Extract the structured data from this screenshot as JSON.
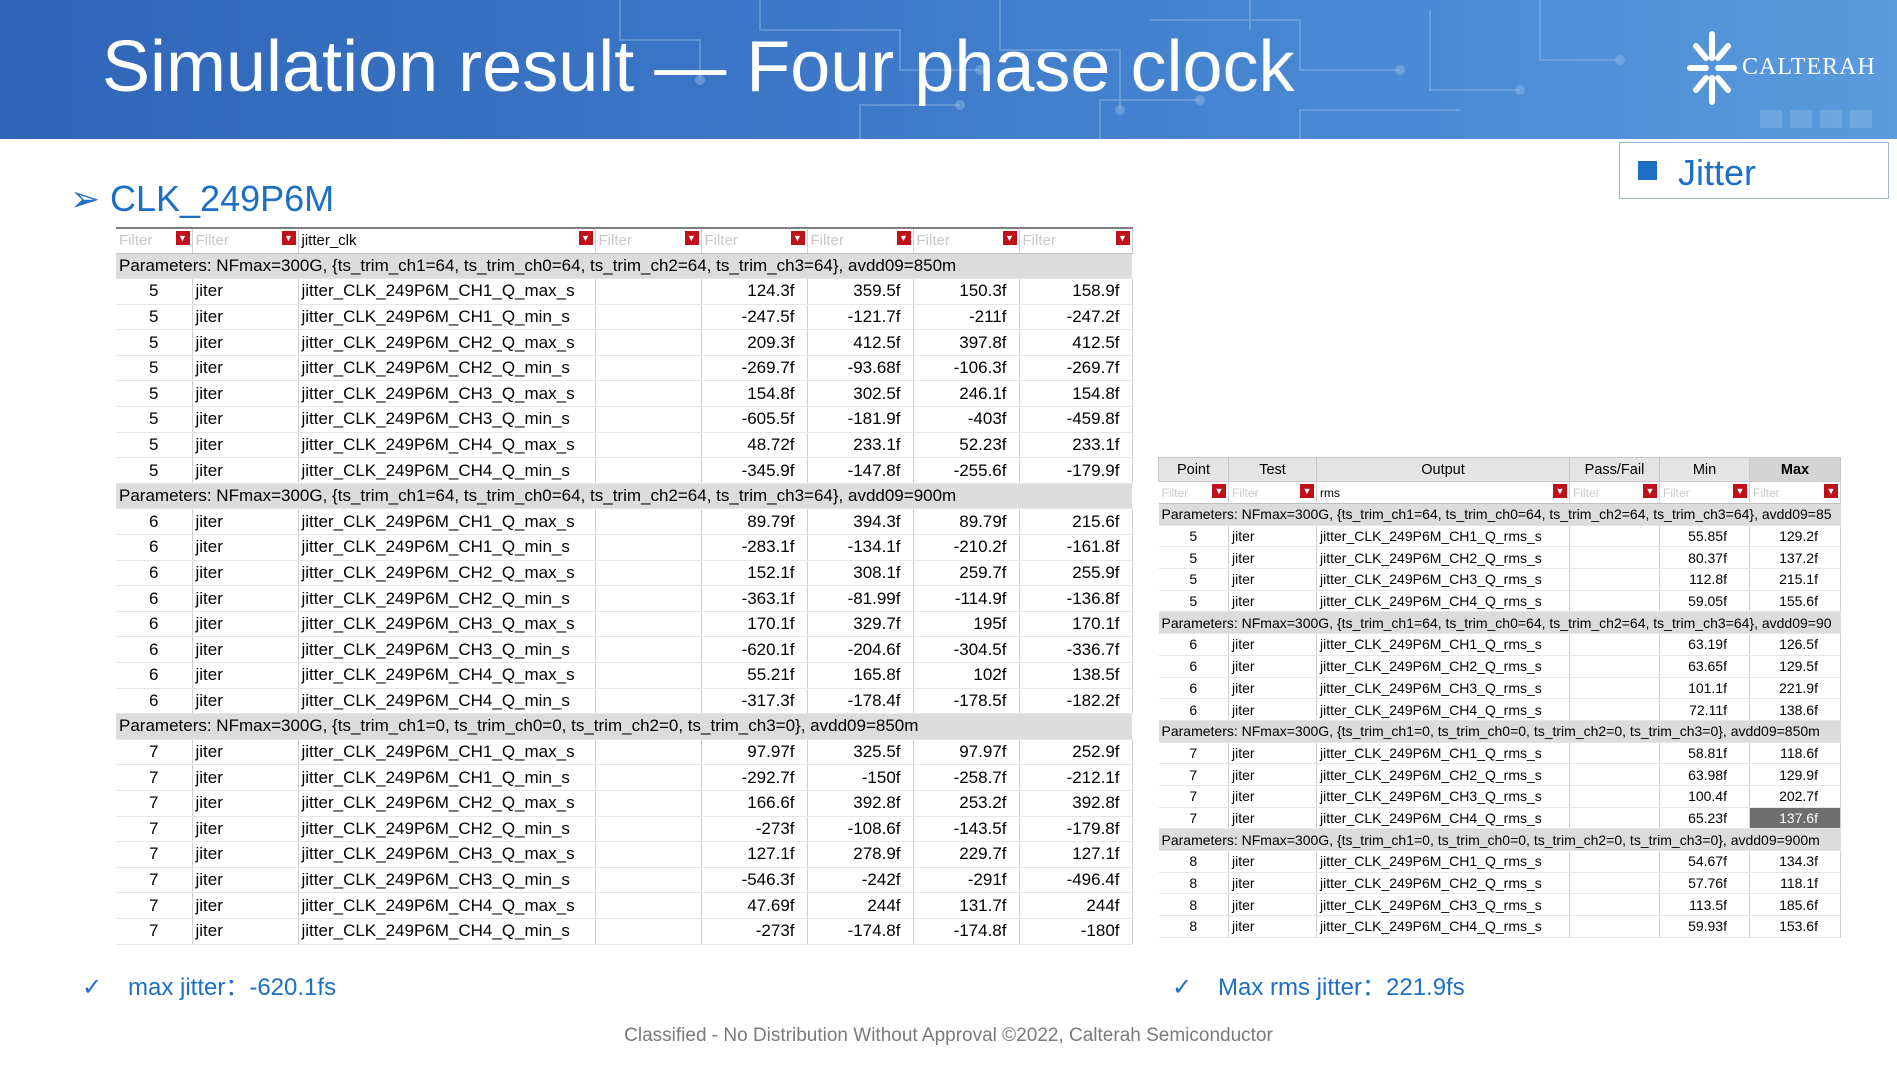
{
  "slide": {
    "title": "Simulation result — Four phase clock",
    "logo_text": "CALTERAH",
    "legend_label": "Jitter",
    "section_heading": "CLK_249P6M",
    "note_left": "max jitter：-620.1fs",
    "note_right": "Max rms jitter：221.9fs",
    "footer": "Classified - No Distribution Without Approval  ©2022, Calterah Semiconductor",
    "colors": {
      "accent": "#1d6fc4",
      "banner": "#3d79c8",
      "filter_icon": "#c0101a"
    }
  },
  "icons": {
    "section_bullet": "➢",
    "check": "✓",
    "filter": "▼"
  },
  "left_table": {
    "filter_placeholder": "Filter",
    "output_filter_value": "jitter_clk",
    "groups": [
      {
        "params": "Parameters: NFmax=300G, {ts_trim_ch1=64, ts_trim_ch0=64, ts_trim_ch2=64, ts_trim_ch3=64}, avdd09=850m",
        "rows": [
          [
            "5",
            "jiter",
            "jitter_CLK_249P6M_CH1_Q_max_s",
            "",
            "124.3f",
            "359.5f",
            "150.3f",
            "158.9f"
          ],
          [
            "5",
            "jiter",
            "jitter_CLK_249P6M_CH1_Q_min_s",
            "",
            "-247.5f",
            "-121.7f",
            "-211f",
            "-247.2f"
          ],
          [
            "5",
            "jiter",
            "jitter_CLK_249P6M_CH2_Q_max_s",
            "",
            "209.3f",
            "412.5f",
            "397.8f",
            "412.5f"
          ],
          [
            "5",
            "jiter",
            "jitter_CLK_249P6M_CH2_Q_min_s",
            "",
            "-269.7f",
            "-93.68f",
            "-106.3f",
            "-269.7f"
          ],
          [
            "5",
            "jiter",
            "jitter_CLK_249P6M_CH3_Q_max_s",
            "",
            "154.8f",
            "302.5f",
            "246.1f",
            "154.8f"
          ],
          [
            "5",
            "jiter",
            "jitter_CLK_249P6M_CH3_Q_min_s",
            "",
            "-605.5f",
            "-181.9f",
            "-403f",
            "-459.8f"
          ],
          [
            "5",
            "jiter",
            "jitter_CLK_249P6M_CH4_Q_max_s",
            "",
            "48.72f",
            "233.1f",
            "52.23f",
            "233.1f"
          ],
          [
            "5",
            "jiter",
            "jitter_CLK_249P6M_CH4_Q_min_s",
            "",
            "-345.9f",
            "-147.8f",
            "-255.6f",
            "-179.9f"
          ]
        ]
      },
      {
        "params": "Parameters: NFmax=300G, {ts_trim_ch1=64, ts_trim_ch0=64, ts_trim_ch2=64, ts_trim_ch3=64}, avdd09=900m",
        "rows": [
          [
            "6",
            "jiter",
            "jitter_CLK_249P6M_CH1_Q_max_s",
            "",
            "89.79f",
            "394.3f",
            "89.79f",
            "215.6f"
          ],
          [
            "6",
            "jiter",
            "jitter_CLK_249P6M_CH1_Q_min_s",
            "",
            "-283.1f",
            "-134.1f",
            "-210.2f",
            "-161.8f"
          ],
          [
            "6",
            "jiter",
            "jitter_CLK_249P6M_CH2_Q_max_s",
            "",
            "152.1f",
            "308.1f",
            "259.7f",
            "255.9f"
          ],
          [
            "6",
            "jiter",
            "jitter_CLK_249P6M_CH2_Q_min_s",
            "",
            "-363.1f",
            "-81.99f",
            "-114.9f",
            "-136.8f"
          ],
          [
            "6",
            "jiter",
            "jitter_CLK_249P6M_CH3_Q_max_s",
            "",
            "170.1f",
            "329.7f",
            "195f",
            "170.1f"
          ],
          [
            "6",
            "jiter",
            "jitter_CLK_249P6M_CH3_Q_min_s",
            "",
            "-620.1f",
            "-204.6f",
            "-304.5f",
            "-336.7f"
          ],
          [
            "6",
            "jiter",
            "jitter_CLK_249P6M_CH4_Q_max_s",
            "",
            "55.21f",
            "165.8f",
            "102f",
            "138.5f"
          ],
          [
            "6",
            "jiter",
            "jitter_CLK_249P6M_CH4_Q_min_s",
            "",
            "-317.3f",
            "-178.4f",
            "-178.5f",
            "-182.2f"
          ]
        ]
      },
      {
        "params": "Parameters: NFmax=300G, {ts_trim_ch1=0, ts_trim_ch0=0, ts_trim_ch2=0, ts_trim_ch3=0}, avdd09=850m",
        "rows": [
          [
            "7",
            "jiter",
            "jitter_CLK_249P6M_CH1_Q_max_s",
            "",
            "97.97f",
            "325.5f",
            "97.97f",
            "252.9f"
          ],
          [
            "7",
            "jiter",
            "jitter_CLK_249P6M_CH1_Q_min_s",
            "",
            "-292.7f",
            "-150f",
            "-258.7f",
            "-212.1f"
          ],
          [
            "7",
            "jiter",
            "jitter_CLK_249P6M_CH2_Q_max_s",
            "",
            "166.6f",
            "392.8f",
            "253.2f",
            "392.8f"
          ],
          [
            "7",
            "jiter",
            "jitter_CLK_249P6M_CH2_Q_min_s",
            "",
            "-273f",
            "-108.6f",
            "-143.5f",
            "-179.8f"
          ],
          [
            "7",
            "jiter",
            "jitter_CLK_249P6M_CH3_Q_max_s",
            "",
            "127.1f",
            "278.9f",
            "229.7f",
            "127.1f"
          ],
          [
            "7",
            "jiter",
            "jitter_CLK_249P6M_CH3_Q_min_s",
            "",
            "-546.3f",
            "-242f",
            "-291f",
            "-496.4f"
          ],
          [
            "7",
            "jiter",
            "jitter_CLK_249P6M_CH4_Q_max_s",
            "",
            "47.69f",
            "244f",
            "131.7f",
            "244f"
          ],
          [
            "7",
            "jiter",
            "jitter_CLK_249P6M_CH4_Q_min_s",
            "",
            "-273f",
            "-174.8f",
            "-174.8f",
            "-180f"
          ]
        ]
      }
    ]
  },
  "right_table": {
    "headers": [
      "Point",
      "Test",
      "Output",
      "Pass/Fail",
      "Min",
      "Max"
    ],
    "filter_placeholder": "Filter",
    "output_filter_value": "rms",
    "groups": [
      {
        "params": "Parameters: NFmax=300G, {ts_trim_ch1=64, ts_trim_ch0=64, ts_trim_ch2=64, ts_trim_ch3=64}, avdd09=85",
        "rows": [
          [
            "5",
            "jiter",
            "jitter_CLK_249P6M_CH1_Q_rms_s",
            "",
            "55.85f",
            "129.2f"
          ],
          [
            "5",
            "jiter",
            "jitter_CLK_249P6M_CH2_Q_rms_s",
            "",
            "80.37f",
            "137.2f"
          ],
          [
            "5",
            "jiter",
            "jitter_CLK_249P6M_CH3_Q_rms_s",
            "",
            "112.8f",
            "215.1f"
          ],
          [
            "5",
            "jiter",
            "jitter_CLK_249P6M_CH4_Q_rms_s",
            "",
            "59.05f",
            "155.6f"
          ]
        ]
      },
      {
        "params": "Parameters: NFmax=300G, {ts_trim_ch1=64, ts_trim_ch0=64, ts_trim_ch2=64, ts_trim_ch3=64}, avdd09=90",
        "rows": [
          [
            "6",
            "jiter",
            "jitter_CLK_249P6M_CH1_Q_rms_s",
            "",
            "63.19f",
            "126.5f"
          ],
          [
            "6",
            "jiter",
            "jitter_CLK_249P6M_CH2_Q_rms_s",
            "",
            "63.65f",
            "129.5f"
          ],
          [
            "6",
            "jiter",
            "jitter_CLK_249P6M_CH3_Q_rms_s",
            "",
            "101.1f",
            "221.9f"
          ],
          [
            "6",
            "jiter",
            "jitter_CLK_249P6M_CH4_Q_rms_s",
            "",
            "72.11f",
            "138.6f"
          ]
        ]
      },
      {
        "params": "Parameters: NFmax=300G, {ts_trim_ch1=0, ts_trim_ch0=0, ts_trim_ch2=0, ts_trim_ch3=0}, avdd09=850m",
        "rows": [
          [
            "7",
            "jiter",
            "jitter_CLK_249P6M_CH1_Q_rms_s",
            "",
            "58.81f",
            "118.6f"
          ],
          [
            "7",
            "jiter",
            "jitter_CLK_249P6M_CH2_Q_rms_s",
            "",
            "63.98f",
            "129.9f"
          ],
          [
            "7",
            "jiter",
            "jitter_CLK_249P6M_CH3_Q_rms_s",
            "",
            "100.4f",
            "202.7f"
          ],
          [
            "7",
            "jiter",
            "jitter_CLK_249P6M_CH4_Q_rms_s",
            "",
            "65.23f",
            "137.6f"
          ]
        ]
      },
      {
        "params": "Parameters: NFmax=300G, {ts_trim_ch1=0, ts_trim_ch0=0, ts_trim_ch2=0, ts_trim_ch3=0}, avdd09=900m",
        "rows": [
          [
            "8",
            "jiter",
            "jitter_CLK_249P6M_CH1_Q_rms_s",
            "",
            "54.67f",
            "134.3f"
          ],
          [
            "8",
            "jiter",
            "jitter_CLK_249P6M_CH2_Q_rms_s",
            "",
            "57.76f",
            "118.1f"
          ],
          [
            "8",
            "jiter",
            "jitter_CLK_249P6M_CH3_Q_rms_s",
            "",
            "113.5f",
            "185.6f"
          ],
          [
            "8",
            "jiter",
            "jitter_CLK_249P6M_CH4_Q_rms_s",
            "",
            "59.93f",
            "153.6f"
          ]
        ]
      }
    ],
    "highlighted_cell": "137.6f"
  }
}
